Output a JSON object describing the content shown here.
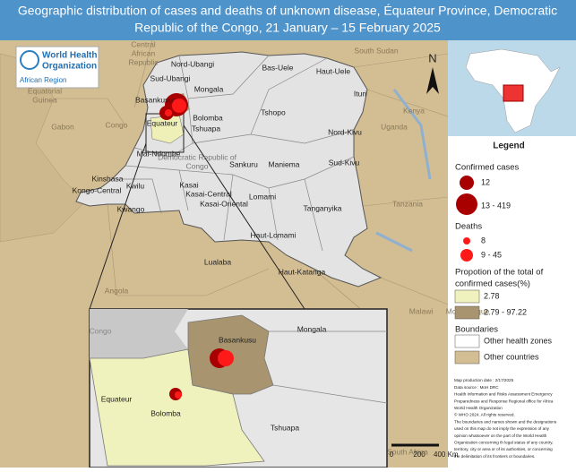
{
  "header": {
    "title_lines": [
      "Geographic distribution of cases and deaths of unknown disease, Équateur Province, Democratic",
      "Republic of the Congo, 21 January – 15 February 2025"
    ]
  },
  "logo": {
    "name_lines": [
      "World Health",
      "Organization"
    ],
    "region": "African Region"
  },
  "map": {
    "provinces": [
      "Nord-Ubangi",
      "Bas-Uele",
      "Haut-Uele",
      "Sud-Ubangi",
      "Mongala",
      "Ituri",
      "Basankusu",
      "Bolomba",
      "Equateur",
      "Tshuapa",
      "Tshopo",
      "Nord-Kivu",
      "Mai-Ndombe",
      "Sankuru",
      "Maniema",
      "Sud-Kivu",
      "Kinshasa",
      "Kwilu",
      "Kasai",
      "Kongo-Central",
      "Kwango",
      "Kasai-Central",
      "Lomami",
      "Kasai-Oriental",
      "Tanganyika",
      "Haut-Lomami",
      "Lualaba",
      "Haut-Katanga"
    ],
    "country_label_lines": [
      "Democratic Republic of",
      "Congo"
    ],
    "countries": [
      "Central",
      "African",
      "Republic",
      "Equatorial",
      "Guinea",
      "Gabon",
      "Congo",
      "South Sudan",
      "Uganda",
      "Kenya",
      "Tanzania",
      "Angola",
      "Malawi",
      "Mozambique",
      "South Africa"
    ],
    "north": "N"
  },
  "zoom": {
    "labels": [
      "Mongala",
      "Basankusu",
      "Equateur",
      "Bolomba",
      "Tshuapa",
      "Congo"
    ]
  },
  "legend": {
    "title": "Legend",
    "cases": {
      "title": "Confirmed cases",
      "items": [
        "12",
        "13 - 419"
      ]
    },
    "deaths": {
      "title": "Deaths",
      "items": [
        "8",
        "9 - 45"
      ]
    },
    "proportion": {
      "title_lines": [
        "Propotion of the total of",
        "confirmed cases(%)"
      ],
      "items": [
        "2.78",
        "2.79 - 97.22"
      ]
    },
    "boundaries": {
      "title": "Boundaries",
      "items": [
        "Other health zones",
        "Other countries"
      ]
    }
  },
  "notes": [
    "Map production date : 2/17/2025",
    "Data source : MoH DRC",
    "Health Information and Risks Assessment Emergency",
    "Preparedness and Response Regional office for Africa",
    "World Health Organization",
    "© WHO 2024. All rights reserved.",
    "The boundaries and names shown and the designations",
    "used on this map do not imply the expression of any",
    "opinion whatsoever on the part of the World Health",
    "Organization concerning th legal status of any country,",
    "territory, city or area or of its authorities, or concerning",
    "the delimitation of its frontiers or boundaries."
  ],
  "scale": [
    "0",
    "200",
    "400 Km"
  ]
}
